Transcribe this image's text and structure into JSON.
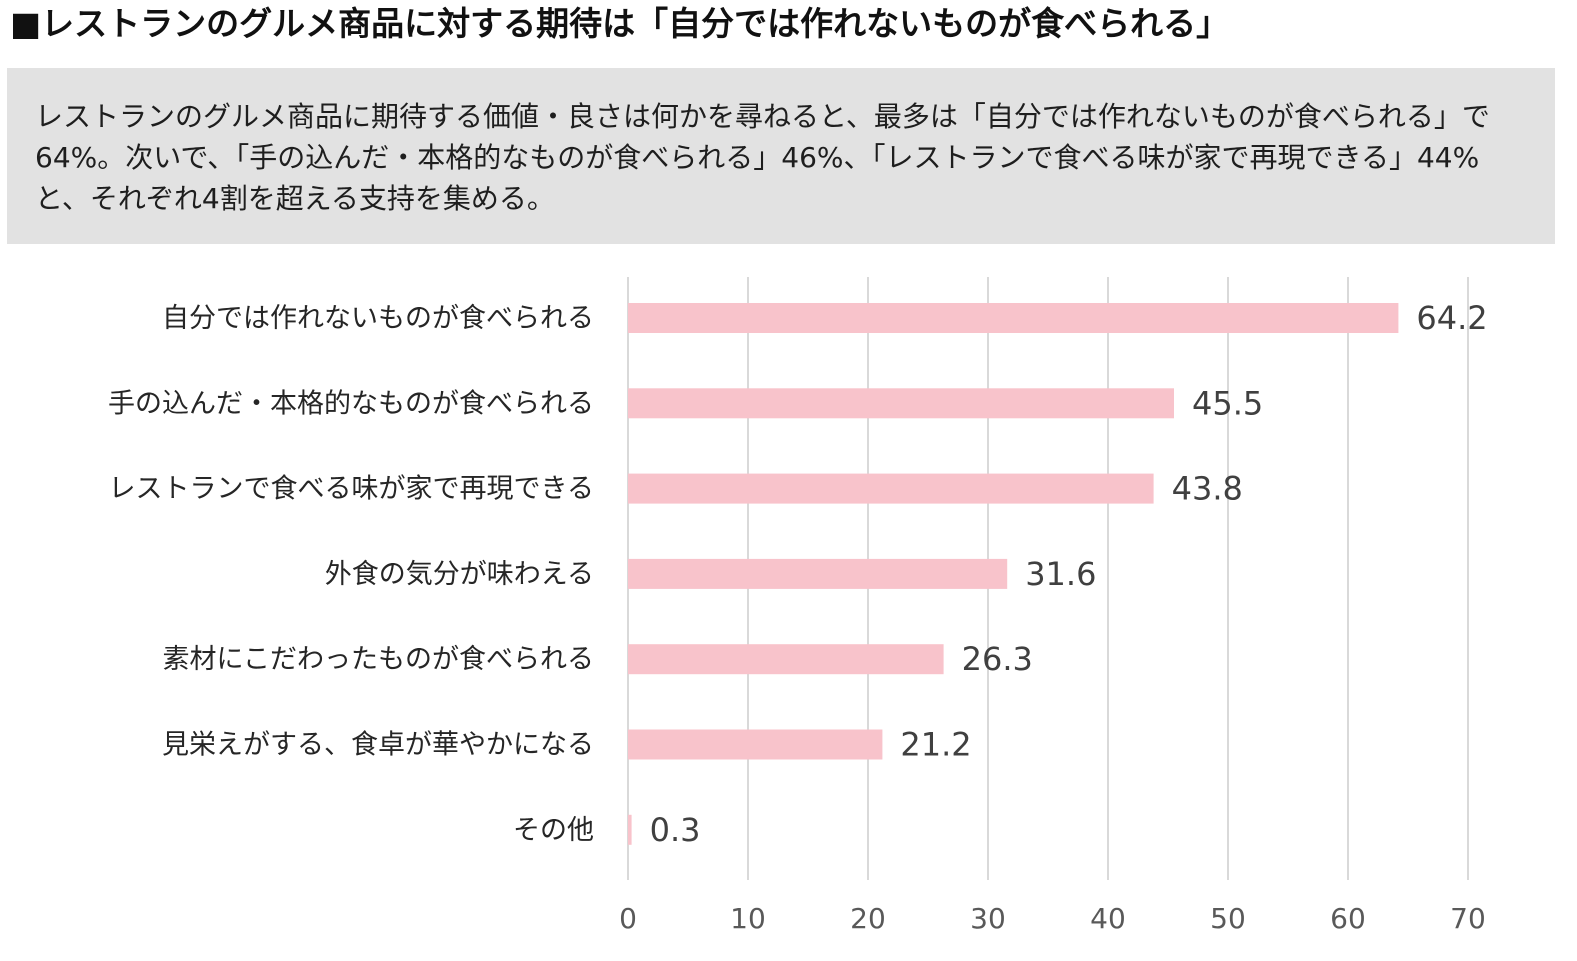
{
  "header": {
    "title": "■レストランのグルメ商品に対する期待は「自分では作れないものが食べられる」"
  },
  "summary": {
    "text": "レストランのグルメ商品に期待する価値・良さは何かを尋ねると、最多は「自分では作れないものが食べられる」で64%。次いで、「手の込んだ・本格的なものが食べられる」46%、「レストランで食べる味が家で再現できる」44%と、それぞれ4割を超える支持を集める。"
  },
  "colors": {
    "bar": "#f8c3cb",
    "gridline": "#d9d9d9"
  },
  "chart_data": {
    "type": "bar",
    "orientation": "horizontal",
    "title": "",
    "xlabel": "",
    "ylabel": "",
    "categories": [
      "自分では作れないものが食べられる",
      "手の込んだ・本格的なものが食べられる",
      "レストランで食べる味が家で再現できる",
      "外食の気分が味わえる",
      "素材にこだわったものが食べられる",
      "見栄えがする、食卓が華やかになる",
      "その他"
    ],
    "values": [
      64.2,
      45.5,
      43.8,
      31.6,
      26.3,
      21.2,
      0.3
    ],
    "value_labels": [
      "64.2",
      "45.5",
      "43.8",
      "31.6",
      "26.3",
      "21.2",
      "0.3"
    ],
    "xlim": [
      0,
      70
    ],
    "ticks": [
      0,
      10,
      20,
      30,
      40,
      50,
      60,
      70
    ],
    "tick_labels": [
      "0",
      "10",
      "20",
      "30",
      "40",
      "50",
      "60",
      "70"
    ],
    "grid": true,
    "legend": "none"
  }
}
